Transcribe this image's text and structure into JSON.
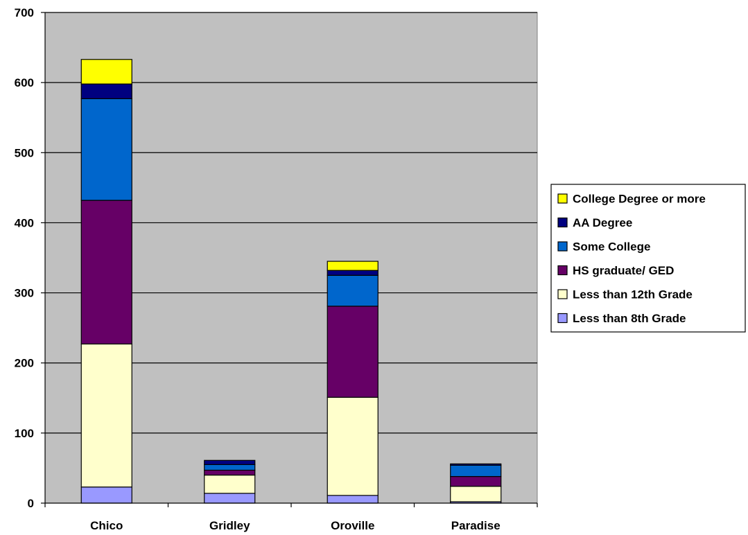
{
  "chart_data": {
    "type": "bar",
    "stacked": true,
    "categories": [
      "Chico",
      "Gridley",
      "Oroville",
      "Paradise"
    ],
    "series": [
      {
        "name": "Less than 8th Grade",
        "color": "#9999FF",
        "values": [
          23,
          14,
          11,
          2
        ]
      },
      {
        "name": "Less than 12th Grade",
        "color": "#FFFFCC",
        "values": [
          204,
          26,
          140,
          22
        ]
      },
      {
        "name": "HS graduate/ GED",
        "color": "#660066",
        "values": [
          205,
          7,
          130,
          14
        ]
      },
      {
        "name": "Some College",
        "color": "#0066CC",
        "values": [
          145,
          8,
          44,
          16
        ]
      },
      {
        "name": "AA Degree",
        "color": "#000080",
        "values": [
          21,
          6,
          7,
          2
        ]
      },
      {
        "name": "College Degree or more",
        "color": "#FFFF00",
        "values": [
          35,
          0,
          13,
          0
        ]
      }
    ],
    "ylim": [
      0,
      700
    ],
    "yticks": [
      0,
      100,
      200,
      300,
      400,
      500,
      600,
      700
    ],
    "grid": true,
    "plot_background": "#C0C0C0",
    "legend": {
      "placement": "right",
      "order": "reverse"
    }
  }
}
